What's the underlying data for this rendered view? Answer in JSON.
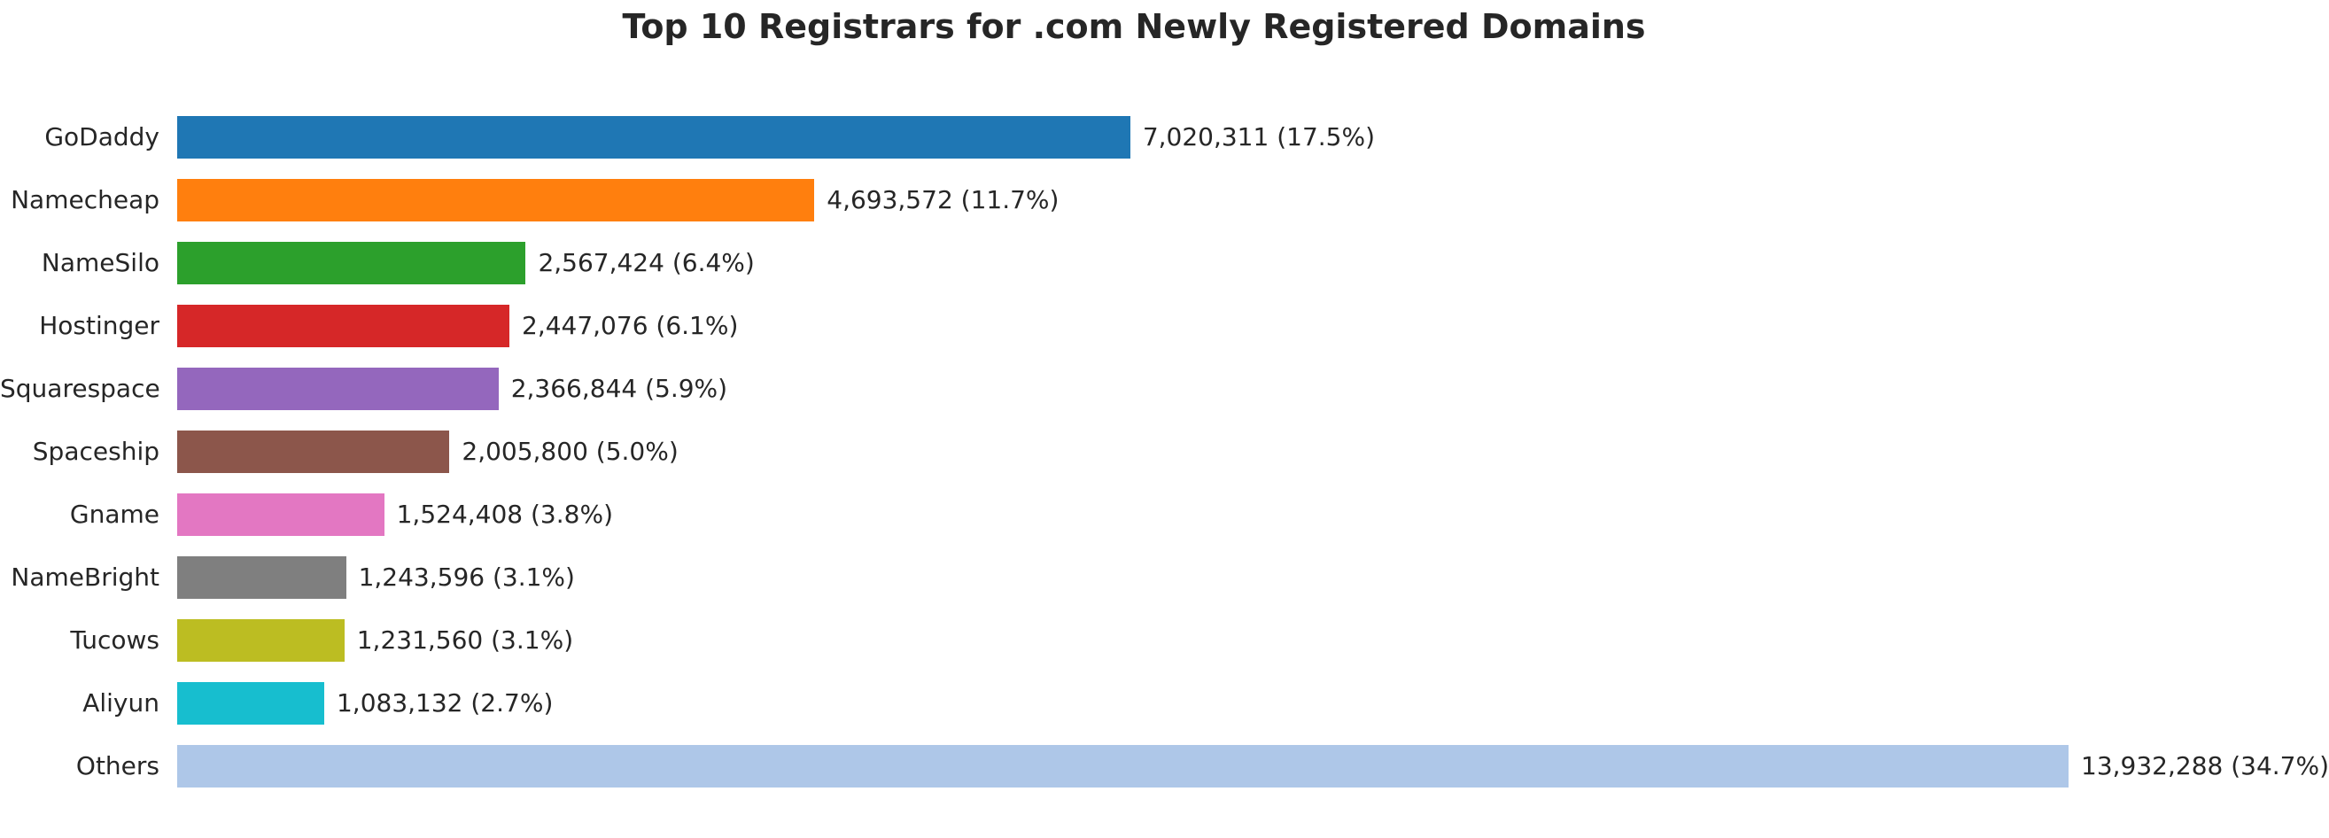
{
  "chart_data": {
    "type": "bar",
    "orientation": "horizontal",
    "title": "Top 10 Registrars for .com Newly Registered Domains",
    "xlabel": "",
    "ylabel": "",
    "grid": false,
    "legend": "none",
    "xlim": [
      0,
      13932288
    ],
    "categories": [
      "GoDaddy",
      "Namecheap",
      "NameSilo",
      "Hostinger",
      "Squarespace",
      "Spaceship",
      "Gname",
      "NameBright",
      "Tucows",
      "Aliyun",
      "Others"
    ],
    "values": [
      7020311,
      4693572,
      2567424,
      2447076,
      2366844,
      2005800,
      1524408,
      1243596,
      1231560,
      1083132,
      13932288
    ],
    "percents": [
      17.5,
      11.7,
      6.4,
      6.1,
      5.9,
      5.0,
      3.8,
      3.1,
      3.1,
      2.7,
      34.7
    ],
    "value_labels": [
      "7,020,311 (17.5%)",
      "4,693,572 (11.7%)",
      "2,567,424 (6.4%)",
      "2,447,076 (6.1%)",
      "2,366,844 (5.9%)",
      "2,005,800 (5.0%)",
      "1,524,408 (3.8%)",
      "1,243,596 (3.1%)",
      "1,231,560 (3.1%)",
      "1,083,132 (2.7%)",
      "13,932,288 (34.7%)"
    ],
    "bar_colors": [
      "#1f77b4",
      "#ff7f0e",
      "#2ca02c",
      "#d62728",
      "#9467bd",
      "#8c564b",
      "#e377c2",
      "#7f7f7f",
      "#bcbd22",
      "#17becf",
      "#aec7e8"
    ],
    "text_color": "#262626",
    "background_color": "#ffffff",
    "bar_max_value": 13932288
  }
}
